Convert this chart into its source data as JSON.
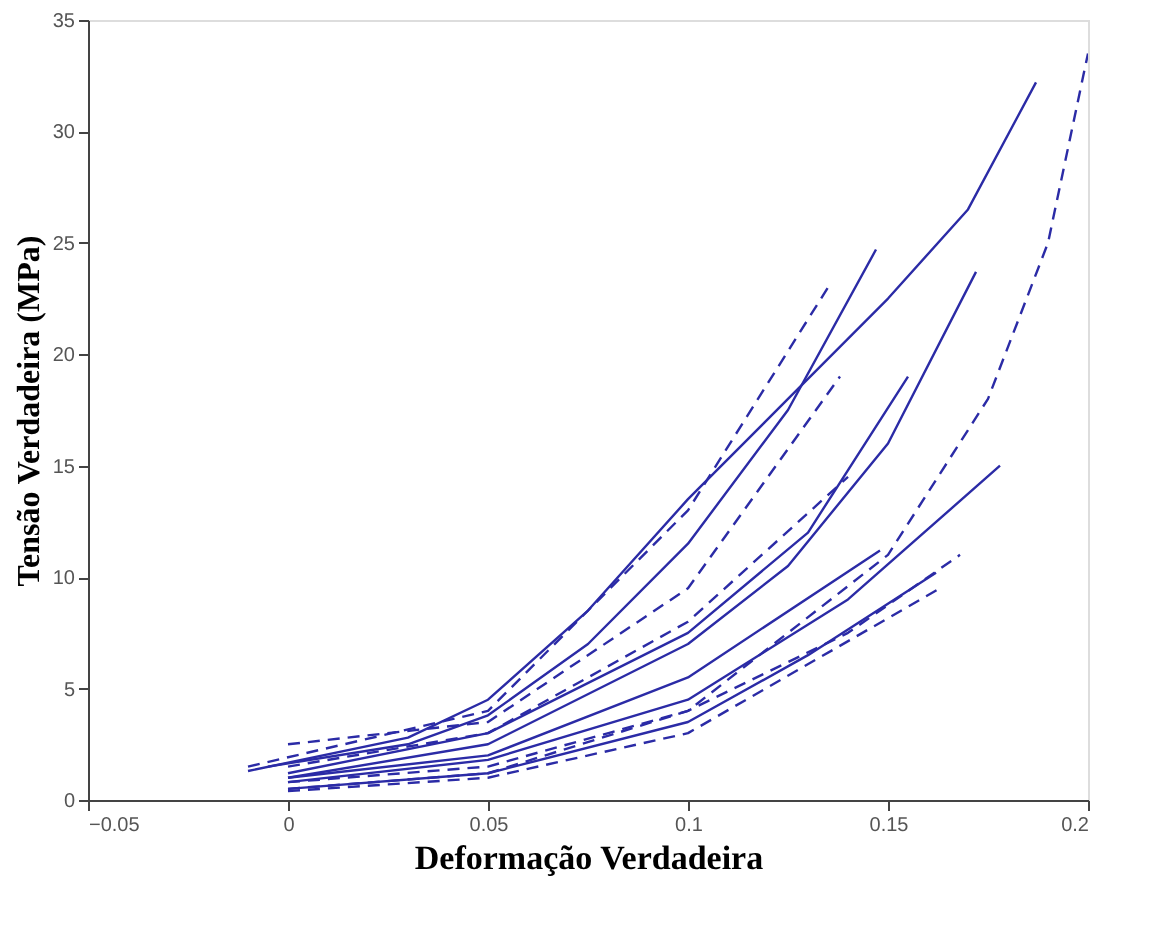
{
  "chart_data": {
    "type": "line",
    "xlabel": "Deformação  Verdadeira",
    "ylabel": "Tensão Verdadeira  (MPa)",
    "xlim": [
      -0.05,
      0.2
    ],
    "xticks": [
      -0.05,
      0,
      0.05,
      0.1,
      0.15,
      0.2
    ],
    "ylim": [
      0,
      35
    ],
    "yticks": [
      0,
      5,
      10,
      15,
      20,
      25,
      30,
      35
    ],
    "grid": false,
    "marker": "none",
    "series": [
      {
        "color": "#2b2ba6",
        "line_style": "solid",
        "x": [
          -0.01,
          0.03,
          0.05,
          0.075,
          0.1,
          0.125,
          0.15,
          0.17,
          0.187
        ],
        "values": [
          1.3,
          2.8,
          4.5,
          8.5,
          13.5,
          18,
          22.5,
          26.5,
          32.2
        ]
      },
      {
        "color": "#2b2ba6",
        "line_style": "solid",
        "x": [
          -0.005,
          0.03,
          0.05,
          0.075,
          0.1,
          0.125,
          0.147
        ],
        "values": [
          1.5,
          2.5,
          3.8,
          7,
          11.5,
          17.5,
          24.7
        ]
      },
      {
        "color": "#2b2ba6",
        "line_style": "solid",
        "x": [
          0,
          0.05,
          0.1,
          0.125,
          0.15,
          0.172
        ],
        "values": [
          1,
          2.5,
          7,
          10.5,
          16,
          23.7
        ]
      },
      {
        "color": "#2b2ba6",
        "line_style": "solid",
        "x": [
          0,
          0.05,
          0.1,
          0.13,
          0.155
        ],
        "values": [
          1.2,
          3,
          7.5,
          12,
          19
        ]
      },
      {
        "color": "#2b2ba6",
        "line_style": "solid",
        "x": [
          0,
          0.05,
          0.1,
          0.14,
          0.178
        ],
        "values": [
          0.8,
          1.8,
          4.5,
          9,
          15
        ]
      },
      {
        "color": "#2b2ba6",
        "line_style": "solid",
        "x": [
          0,
          0.05,
          0.1,
          0.148
        ],
        "values": [
          1,
          2,
          5.5,
          11.2
        ]
      },
      {
        "color": "#2b2ba6",
        "line_style": "solid",
        "x": [
          0,
          0.05,
          0.1,
          0.13,
          0.162
        ],
        "values": [
          0.5,
          1.2,
          3.5,
          6.5,
          10.2
        ]
      },
      {
        "color": "#2b2ba6",
        "line_style": "dashed",
        "x": [
          0,
          0.05,
          0.1,
          0.15,
          0.175,
          0.19,
          0.2
        ],
        "values": [
          0.5,
          1.2,
          4,
          11,
          18,
          25,
          33.5
        ]
      },
      {
        "color": "#2b2ba6",
        "line_style": "dashed",
        "x": [
          -0.01,
          0.05,
          0.1,
          0.135
        ],
        "values": [
          1.5,
          4,
          13,
          23
        ]
      },
      {
        "color": "#2b2ba6",
        "line_style": "dashed",
        "x": [
          0,
          0.05,
          0.1,
          0.138
        ],
        "values": [
          2.5,
          3.5,
          9.5,
          19
        ]
      },
      {
        "color": "#2b2ba6",
        "line_style": "dashed",
        "x": [
          0,
          0.05,
          0.1,
          0.14
        ],
        "values": [
          1.5,
          3,
          8,
          14.5
        ]
      },
      {
        "color": "#2b2ba6",
        "line_style": "dashed",
        "x": [
          0,
          0.05,
          0.1,
          0.14,
          0.168
        ],
        "values": [
          0.8,
          1.5,
          4,
          7.5,
          11
        ]
      },
      {
        "color": "#2b2ba6",
        "line_style": "dashed",
        "x": [
          0,
          0.05,
          0.1,
          0.163
        ],
        "values": [
          0.4,
          1,
          3,
          9.5
        ]
      }
    ]
  }
}
